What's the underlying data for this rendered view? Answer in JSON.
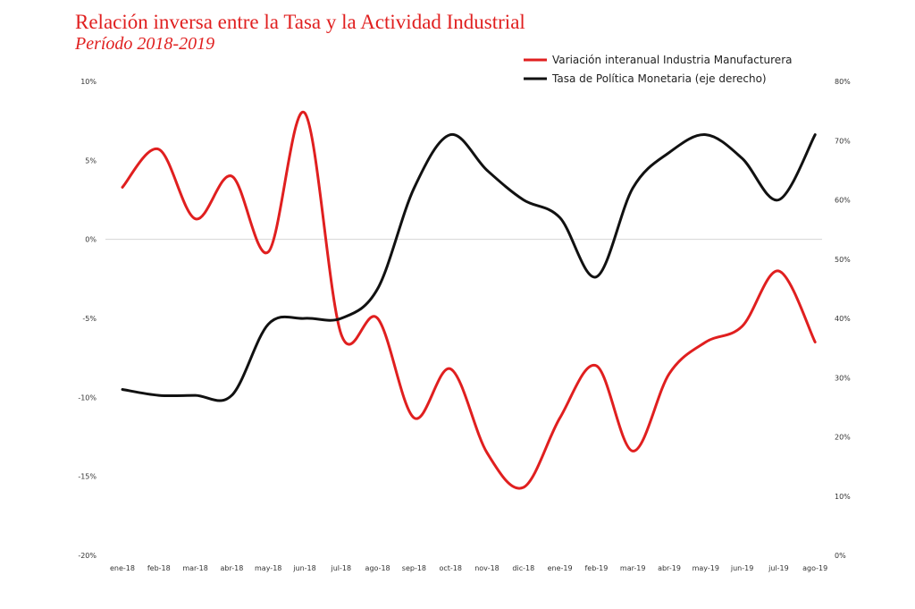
{
  "title": "Relación inversa entre la Tasa y la Actividad Industrial",
  "subtitle": "Período 2018-2019",
  "chart_data": {
    "type": "line",
    "title": "Relación inversa entre la Tasa y la Actividad Industrial",
    "subtitle": "Período 2018-2019",
    "categories": [
      "ene-18",
      "feb-18",
      "mar-18",
      "abr-18",
      "may-18",
      "jun-18",
      "jul-18",
      "ago-18",
      "sep-18",
      "oct-18",
      "nov-18",
      "dic-18",
      "ene-19",
      "feb-19",
      "mar-19",
      "abr-19",
      "may-19",
      "jun-19",
      "jul-19",
      "ago-19"
    ],
    "series": [
      {
        "name": "Variación interanual Industria Manufacturera",
        "axis": "left",
        "color": "#e01f1f",
        "values": [
          3.3,
          5.7,
          1.3,
          4.0,
          -0.8,
          8.0,
          -6.0,
          -5.0,
          -11.3,
          -8.2,
          -13.5,
          -15.7,
          -11.3,
          -8.0,
          -13.4,
          -8.5,
          -6.5,
          -5.5,
          -2.0,
          -6.5
        ]
      },
      {
        "name": "Tasa de Política Monetaria (eje derecho)",
        "axis": "right",
        "color": "#111111",
        "values": [
          28,
          27,
          27,
          27,
          39,
          40,
          40,
          45,
          62,
          71,
          65,
          60,
          57,
          47,
          62,
          68,
          71,
          67,
          60,
          71
        ]
      }
    ],
    "y_left": {
      "ylim": [
        -20,
        10
      ],
      "ticks": [
        10,
        5,
        0,
        -5,
        -10,
        -15,
        -20
      ],
      "tick_labels": [
        "10%",
        "5%",
        "0%",
        "-5%",
        "-10%",
        "-15%",
        "-20%"
      ]
    },
    "y_right": {
      "ylim": [
        0,
        80
      ],
      "ticks": [
        80,
        70,
        60,
        50,
        40,
        30,
        20,
        10,
        0
      ],
      "tick_labels": [
        "80%",
        "70%",
        "60%",
        "50%",
        "40%",
        "30%",
        "20%",
        "10%",
        "0%"
      ]
    },
    "zero_line": true,
    "grid": false,
    "legend_position": "top-right"
  }
}
